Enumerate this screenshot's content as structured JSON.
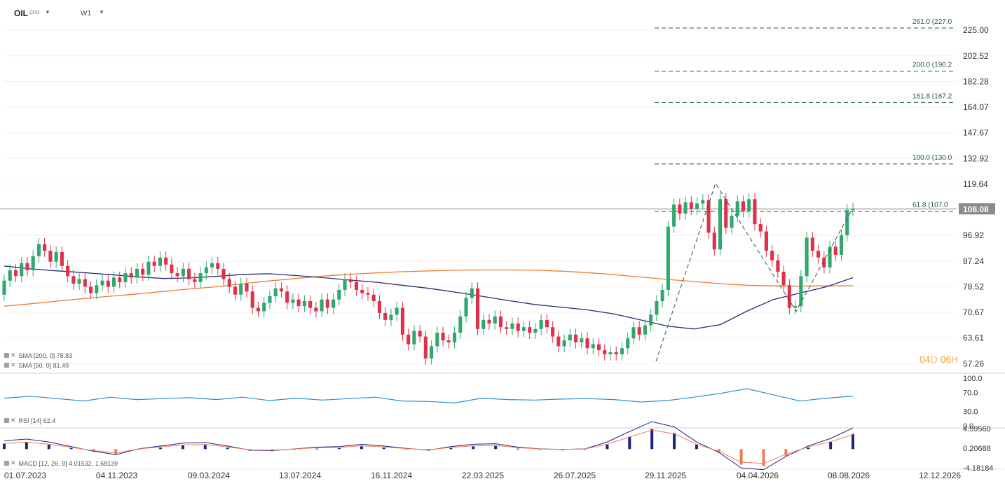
{
  "header": {
    "symbol": "OIL",
    "symbol_type": "CFD",
    "timeframe": "W1"
  },
  "indicators": {
    "sma200_label": "SMA [200, 0] 78.83",
    "sma50_label": "SMA [50, 0] 81.49",
    "rsi_label": "RSI [14] 62.4",
    "macd_label": "MACD [12, 26, 9] 4.01532, 1.68139"
  },
  "countdown": {
    "days": "04",
    "day_unit": "D",
    "hours": "06",
    "hour_unit": "H"
  },
  "current_price": "108.08",
  "colors": {
    "up": "#2ea86f",
    "down": "#e0314b",
    "sma200": "#f07b32",
    "sma50": "#2b2b7a",
    "rsi": "#2b8fd9",
    "macd_pos": "#1a237e",
    "macd_neg": "#f07b5a",
    "fib": "#1e5c37",
    "price_tag": "#8a8a8a"
  },
  "chart_data": {
    "type": "candlestick",
    "x_labels": [
      "01.07.2023",
      "04.11.2023",
      "09.03.2024",
      "13.07.2024",
      "16.11.2024",
      "22.03.2025",
      "26.07.2025",
      "29.11.2025",
      "04.04.2026",
      "08.08.2026",
      "12.12.2026"
    ],
    "price_axis_ticks": [
      "225.00",
      "202.52",
      "182.28",
      "164.07",
      "147.67",
      "132.92",
      "119.64",
      "96.92",
      "87.24",
      "78.52",
      "70.67",
      "63.61",
      "57.26"
    ],
    "price_range": [
      56,
      235
    ],
    "scale": "log",
    "fib_levels": [
      {
        "label": "261.0 (227.0",
        "price": 227.0
      },
      {
        "label": "200.0 (190.2",
        "price": 190.2
      },
      {
        "label": "161.8 (167.2",
        "price": 167.2
      },
      {
        "label": "100.0 (130.0",
        "price": 130.0
      },
      {
        "label": "61.8 (107.0",
        "price": 107.0
      }
    ],
    "sma200": [
      72.5,
      73.2,
      74.0,
      74.8,
      75.5,
      76.2,
      77.0,
      77.8,
      78.5,
      79.5,
      80.4,
      81.2,
      82.0,
      82.6,
      83.1,
      83.5,
      83.8,
      84.0,
      84.1,
      84.1,
      84.0,
      83.7,
      83.2,
      82.5,
      81.7,
      80.9,
      80.2,
      79.5,
      79.0,
      78.8,
      78.7,
      78.8,
      78.83
    ],
    "sma50": [
      85.5,
      84.5,
      83.8,
      83.2,
      82.5,
      81.8,
      81.2,
      81.4,
      81.9,
      82.6,
      82.8,
      82.2,
      81.5,
      80.7,
      80.0,
      79.0,
      78.0,
      76.8,
      75.5,
      74.2,
      73.0,
      72.2,
      71.4,
      70.2,
      68.5,
      66.8,
      66.0,
      67.2,
      71.0,
      74.5,
      76.5,
      78.5,
      81.49
    ],
    "rsi": [
      58,
      62,
      57,
      52,
      60,
      55,
      57,
      59,
      55,
      60,
      53,
      58,
      54,
      57,
      60,
      52,
      51,
      48,
      58,
      55,
      54,
      56,
      57,
      55,
      50,
      53,
      60,
      68,
      78,
      65,
      52,
      58,
      62.4
    ],
    "rsi_axis": [
      "100.0",
      "70.0",
      "30.0",
      "0.0"
    ],
    "macd_axis": [
      "4.59560",
      "0.20688",
      "-4.18184"
    ],
    "macd_hist": [
      1.2,
      1.5,
      1.0,
      0.2,
      -0.6,
      -1.2,
      -0.2,
      0.3,
      0.8,
      0.9,
      0.3,
      -0.4,
      -0.5,
      -0.2,
      0.1,
      0.2,
      0.6,
      0.3,
      -0.1,
      -0.4,
      0.2,
      0.6,
      0.7,
      0.1,
      -0.2,
      -0.3,
      -0.2,
      1.0,
      2.8,
      4.5,
      3.6,
      1.0,
      -0.8,
      -3.5,
      -3.8,
      -1.5,
      0.3,
      1.6,
      3.4
    ],
    "candles": [
      [
        76.0,
        80.5
      ],
      [
        80.5,
        84.0
      ],
      [
        84.0,
        82.0
      ],
      [
        82.0,
        86.5
      ],
      [
        86.5,
        84.0
      ],
      [
        84.0,
        89.0
      ],
      [
        89.0,
        93.5
      ],
      [
        93.5,
        91.0
      ],
      [
        91.0,
        87.0
      ],
      [
        87.0,
        90.5
      ],
      [
        90.5,
        85.5
      ],
      [
        85.5,
        82.0
      ],
      [
        82.0,
        79.5
      ],
      [
        79.5,
        81.0
      ],
      [
        81.0,
        78.5
      ],
      [
        78.5,
        76.5
      ],
      [
        76.5,
        79.0
      ],
      [
        79.0,
        80.5
      ],
      [
        80.5,
        78.5
      ],
      [
        78.5,
        81.5
      ],
      [
        81.5,
        80.0
      ],
      [
        80.0,
        83.0
      ],
      [
        83.0,
        81.5
      ],
      [
        81.5,
        84.5
      ],
      [
        84.5,
        82.5
      ],
      [
        82.5,
        87.0
      ],
      [
        87.0,
        85.5
      ],
      [
        85.5,
        88.5
      ],
      [
        88.5,
        86.0
      ],
      [
        86.0,
        83.0
      ],
      [
        83.0,
        82.0
      ],
      [
        82.0,
        84.5
      ],
      [
        84.5,
        81.0
      ],
      [
        81.0,
        80.0
      ],
      [
        80.0,
        83.0
      ],
      [
        83.0,
        85.0
      ],
      [
        85.0,
        86.5
      ],
      [
        86.5,
        84.5
      ],
      [
        84.5,
        81.0
      ],
      [
        81.0,
        78.5
      ],
      [
        78.5,
        76.0
      ],
      [
        76.0,
        79.5
      ],
      [
        79.5,
        77.0
      ],
      [
        77.0,
        72.0
      ],
      [
        72.0,
        71.0
      ],
      [
        71.0,
        73.5
      ],
      [
        73.5,
        75.5
      ],
      [
        75.5,
        78.0
      ],
      [
        78.0,
        77.0
      ],
      [
        77.0,
        73.5
      ],
      [
        73.5,
        74.5
      ],
      [
        74.5,
        72.5
      ],
      [
        72.5,
        74.0
      ],
      [
        74.0,
        72.0
      ],
      [
        72.0,
        71.0
      ],
      [
        71.0,
        74.5
      ],
      [
        74.5,
        72.0
      ],
      [
        72.0,
        74.5
      ],
      [
        74.5,
        77.5
      ],
      [
        77.5,
        81.0
      ],
      [
        81.0,
        80.0
      ],
      [
        80.0,
        77.5
      ],
      [
        77.5,
        76.5
      ],
      [
        76.5,
        76.0
      ],
      [
        76.0,
        74.0
      ],
      [
        74.0,
        70.5
      ],
      [
        70.5,
        68.5
      ],
      [
        68.5,
        70.0
      ],
      [
        70.0,
        72.0
      ],
      [
        72.0,
        64.5
      ],
      [
        64.5,
        62.0
      ],
      [
        62.0,
        65.5
      ],
      [
        65.5,
        64.0
      ],
      [
        64.0,
        58.5
      ],
      [
        58.5,
        61.5
      ],
      [
        61.5,
        65.0
      ],
      [
        65.0,
        63.0
      ],
      [
        63.0,
        62.5
      ],
      [
        62.5,
        65.0
      ],
      [
        65.0,
        69.5
      ],
      [
        69.5,
        75.0
      ],
      [
        75.0,
        78.0
      ],
      [
        78.0,
        66.0
      ],
      [
        66.0,
        68.5
      ],
      [
        68.5,
        67.5
      ],
      [
        67.5,
        69.5
      ],
      [
        69.5,
        66.5
      ],
      [
        66.5,
        66.0
      ],
      [
        66.0,
        67.5
      ],
      [
        67.5,
        65.5
      ],
      [
        65.5,
        66.5
      ],
      [
        66.5,
        65.0
      ],
      [
        65.0,
        66.0
      ],
      [
        66.0,
        68.5
      ],
      [
        68.5,
        66.5
      ],
      [
        66.5,
        64.0
      ],
      [
        64.0,
        61.5
      ],
      [
        61.5,
        63.0
      ],
      [
        63.0,
        64.5
      ],
      [
        64.5,
        62.5
      ],
      [
        62.5,
        63.5
      ],
      [
        63.5,
        61.0
      ],
      [
        61.0,
        62.0
      ],
      [
        62.0,
        60.5
      ],
      [
        60.5,
        59.5
      ],
      [
        59.5,
        60.0
      ],
      [
        60.0,
        59.5
      ],
      [
        59.5,
        61.0
      ],
      [
        61.0,
        63.5
      ],
      [
        63.5,
        66.5
      ],
      [
        66.5,
        64.5
      ],
      [
        64.5,
        67.0
      ],
      [
        67.0,
        70.0
      ],
      [
        70.0,
        74.0
      ],
      [
        74.0,
        77.5
      ],
      [
        77.5,
        100.5
      ],
      [
        100.5,
        110.0
      ],
      [
        110.0,
        106.0
      ],
      [
        106.0,
        111.0
      ],
      [
        111.0,
        108.0
      ],
      [
        108.0,
        110.5
      ],
      [
        110.5,
        112.0
      ],
      [
        112.0,
        98.0
      ],
      [
        98.0,
        91.5
      ],
      [
        91.5,
        112.5
      ],
      [
        112.5,
        100.0
      ],
      [
        100.0,
        105.0
      ],
      [
        105.0,
        111.5
      ],
      [
        111.5,
        107.0
      ],
      [
        107.0,
        112.5
      ],
      [
        112.5,
        101.5
      ],
      [
        101.5,
        98.5
      ],
      [
        98.5,
        91.0
      ],
      [
        91.0,
        87.5
      ],
      [
        87.5,
        83.5
      ],
      [
        83.5,
        79.0
      ],
      [
        79.0,
        72.0
      ],
      [
        72.0,
        72.5
      ],
      [
        72.5,
        82.0
      ],
      [
        82.0,
        96.0
      ],
      [
        96.0,
        91.0
      ],
      [
        91.0,
        88.5
      ],
      [
        88.5,
        85.0
      ],
      [
        85.0,
        92.5
      ],
      [
        92.5,
        89.5
      ],
      [
        89.5,
        97.0
      ],
      [
        97.0,
        107.5
      ],
      [
        107.5,
        108.08
      ]
    ],
    "zigzag": [
      {
        "price": 57.8
      },
      {
        "price": 120.0
      },
      {
        "price": 71.0
      },
      {
        "price": 108.0
      }
    ]
  }
}
